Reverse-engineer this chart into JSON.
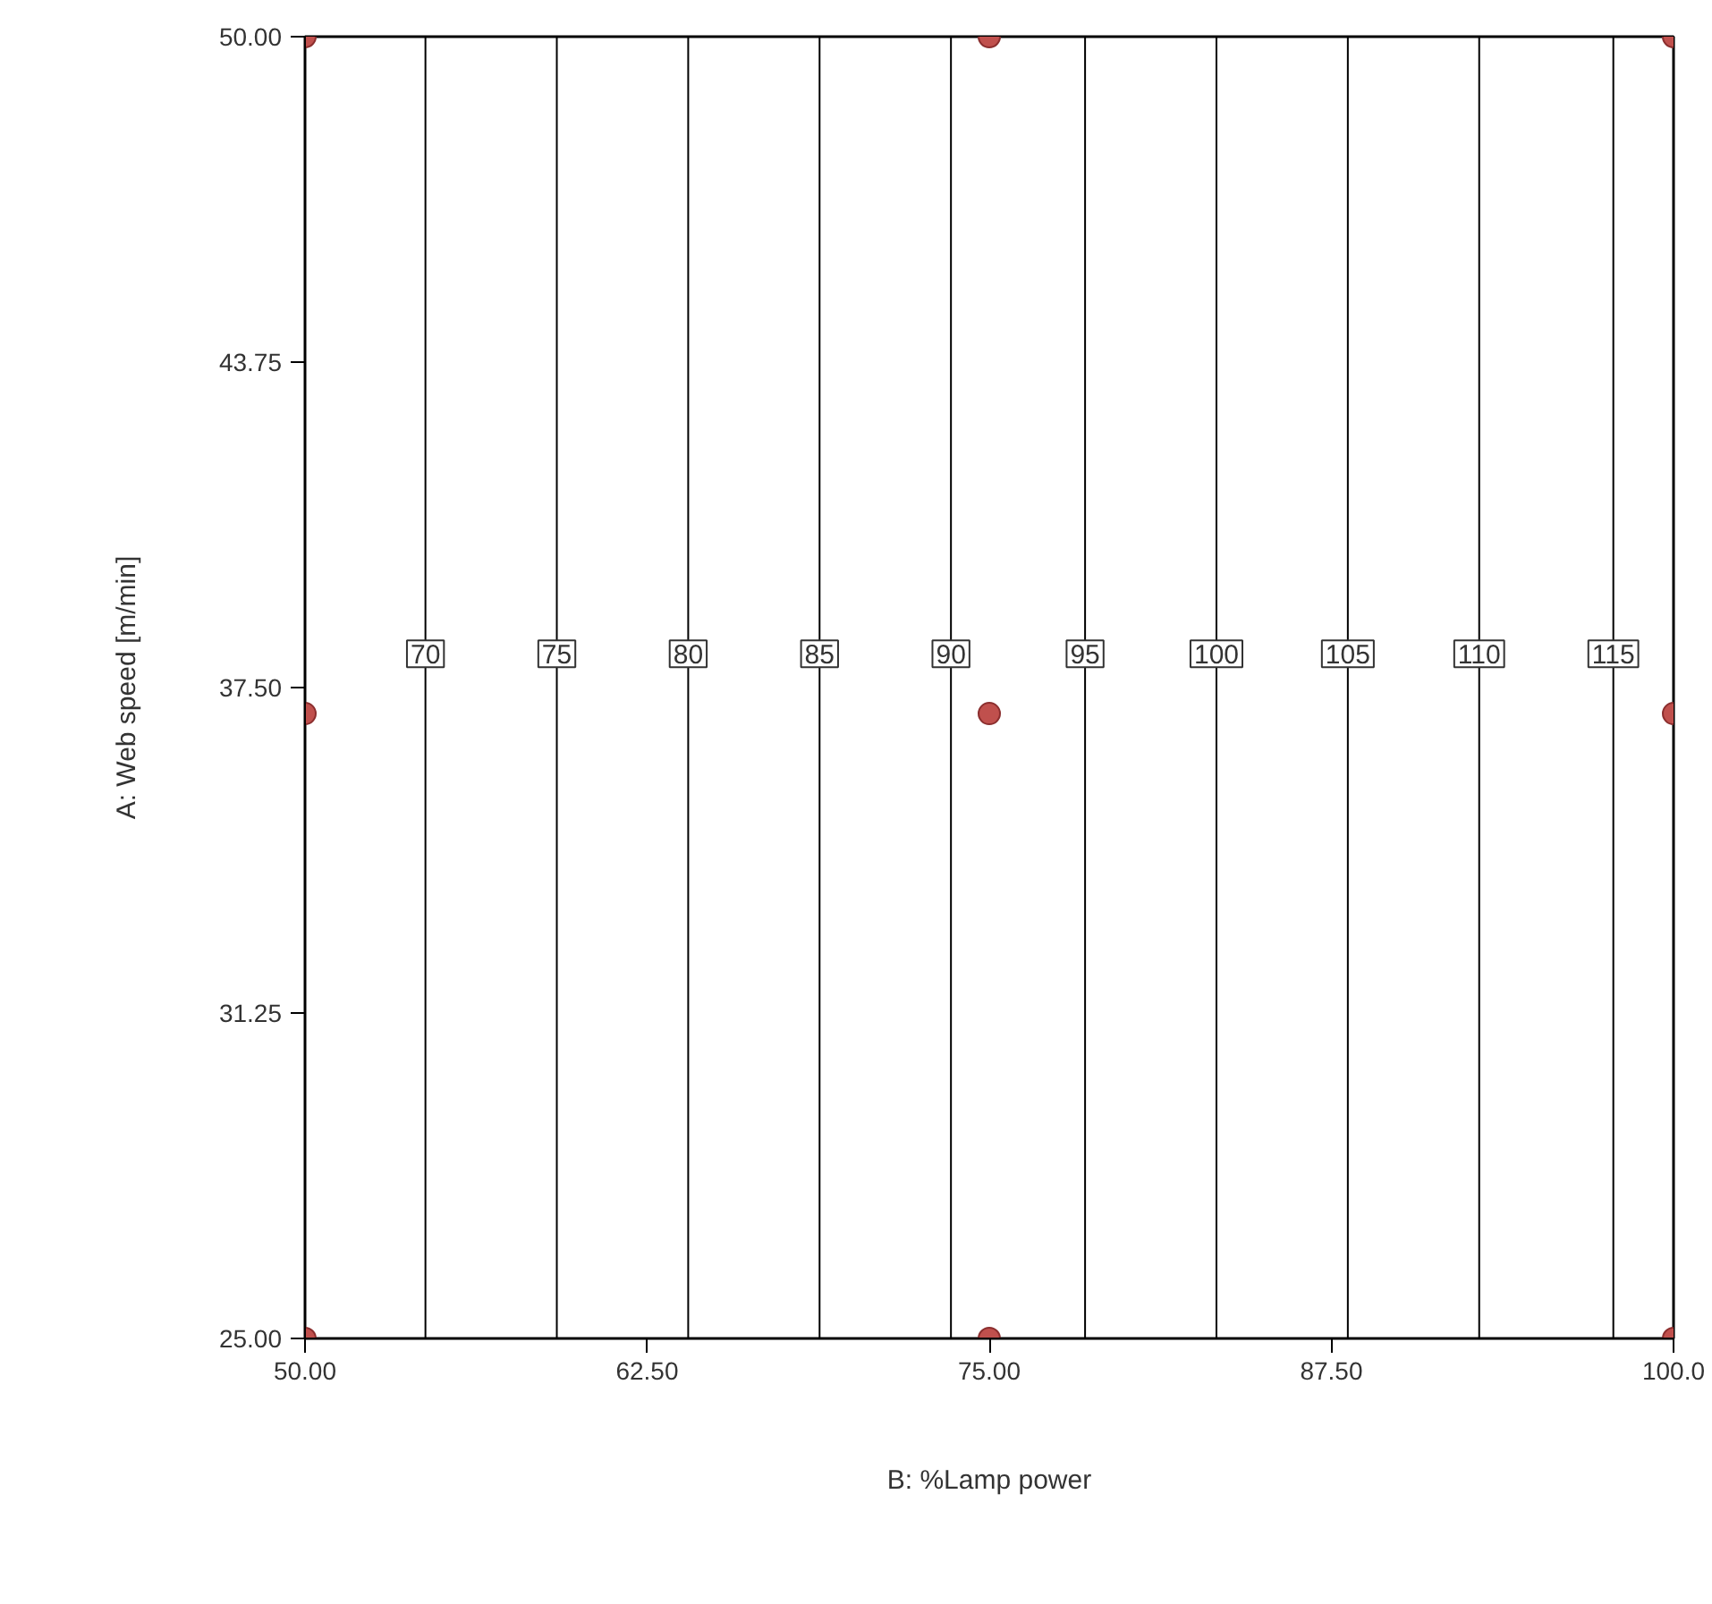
{
  "chart_data": {
    "type": "scatter",
    "xlabel": "B: %Lamp power",
    "ylabel": "A: Web speed [m/min]",
    "grid": false,
    "xlim": [
      50,
      100
    ],
    "ylim": [
      25,
      50
    ],
    "xticks": [
      {
        "value": 50,
        "label": "50.00"
      },
      {
        "value": 62.5,
        "label": "62.50"
      },
      {
        "value": 75,
        "label": "75.00"
      },
      {
        "value": 87.5,
        "label": "87.50"
      },
      {
        "value": 100,
        "label": "100.0"
      }
    ],
    "yticks": [
      {
        "value": 25,
        "label": "25.00"
      },
      {
        "value": 31.25,
        "label": "31.25"
      },
      {
        "value": 37.5,
        "label": "37.50"
      },
      {
        "value": 43.75,
        "label": "43.75"
      },
      {
        "value": 50,
        "label": "50.00"
      }
    ],
    "series": [
      {
        "marker": "circle",
        "color": "#c0504d",
        "x": [
          50,
          75,
          100,
          50,
          75,
          100,
          50,
          75,
          100
        ],
        "values": [
          50,
          50,
          50,
          37,
          37,
          37,
          25,
          25,
          25
        ]
      },
      {
        "type": "line",
        "name": "70",
        "color": "#000000",
        "x": [
          54.4,
          54.4
        ],
        "values": [
          25,
          50
        ]
      },
      {
        "type": "line",
        "name": "75",
        "color": "#000000",
        "x": [
          59.2,
          59.2
        ],
        "values": [
          25,
          50
        ]
      },
      {
        "type": "line",
        "name": "80",
        "color": "#000000",
        "x": [
          64.0,
          64.0
        ],
        "values": [
          25,
          50
        ]
      },
      {
        "type": "line",
        "name": "85",
        "color": "#000000",
        "x": [
          68.8,
          68.8
        ],
        "values": [
          25,
          50
        ]
      },
      {
        "type": "line",
        "name": "90",
        "color": "#000000",
        "x": [
          73.6,
          73.6
        ],
        "values": [
          25,
          50
        ]
      },
      {
        "type": "line",
        "name": "95",
        "color": "#000000",
        "x": [
          78.5,
          78.5
        ],
        "values": [
          25,
          50
        ]
      },
      {
        "type": "line",
        "name": "100",
        "color": "#000000",
        "x": [
          83.3,
          83.3
        ],
        "values": [
          25,
          50
        ]
      },
      {
        "type": "line",
        "name": "105",
        "color": "#000000",
        "x": [
          88.1,
          88.1
        ],
        "values": [
          25,
          50
        ]
      },
      {
        "type": "line",
        "name": "110",
        "color": "#000000",
        "x": [
          92.9,
          92.9
        ],
        "values": [
          25,
          50
        ]
      },
      {
        "type": "line",
        "name": "115",
        "color": "#000000",
        "x": [
          97.8,
          97.8
        ],
        "values": [
          25,
          50
        ]
      }
    ]
  }
}
